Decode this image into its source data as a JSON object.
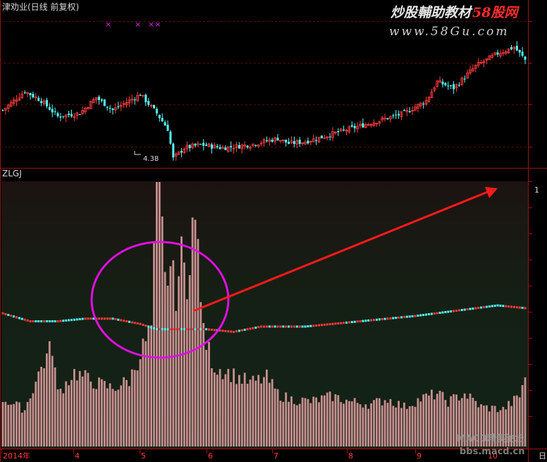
{
  "header": {
    "title": "津劝业(日线 前复权)",
    "watermark_cn": "炒股輔助教材",
    "watermark_site": "58股网",
    "watermark_url": "www.58Gu.com",
    "markers": [
      "×",
      "×",
      "××"
    ]
  },
  "indicator": {
    "label": "ZLGJ",
    "right_tick": "1"
  },
  "footer": {
    "x_labels": [
      "2014年",
      "4",
      "5",
      "6",
      "7",
      "8",
      "9",
      "10"
    ],
    "right_label": "日",
    "forum_name": "MACD精英论坛",
    "forum_url": "bbs.macd.cn"
  },
  "colors": {
    "up": "#ff3c3c",
    "down": "#54ffff",
    "bar": "#c78f8f",
    "axis": "#c01010",
    "annotation": "#e010e0",
    "arrow": "#ff1a1a"
  },
  "chart_data": [
    {
      "type": "candlestick",
      "title": "津劝业(日线 前复权)",
      "x_ticks": [
        "2014年",
        "4",
        "5",
        "6",
        "7",
        "8",
        "9",
        "10"
      ],
      "annotations": [
        {
          "label": "4.38",
          "meaning": "period low"
        }
      ],
      "price_path": [
        [
          0,
          5.15
        ],
        [
          8,
          5.45
        ],
        [
          14,
          5.3
        ],
        [
          20,
          5.05
        ],
        [
          28,
          5.1
        ],
        [
          34,
          5.35
        ],
        [
          40,
          5.15
        ],
        [
          46,
          5.3
        ],
        [
          50,
          5.4
        ],
        [
          56,
          5.1
        ],
        [
          60,
          4.85
        ],
        [
          62,
          4.38
        ],
        [
          66,
          4.55
        ],
        [
          72,
          4.6
        ],
        [
          80,
          4.55
        ],
        [
          90,
          4.6
        ],
        [
          100,
          4.7
        ],
        [
          104,
          4.62
        ],
        [
          110,
          4.65
        ],
        [
          116,
          4.72
        ],
        [
          122,
          4.8
        ],
        [
          130,
          4.9
        ],
        [
          138,
          5.0
        ],
        [
          146,
          5.1
        ],
        [
          154,
          5.3
        ],
        [
          158,
          5.6
        ],
        [
          164,
          5.5
        ],
        [
          172,
          5.85
        ],
        [
          180,
          6.05
        ],
        [
          186,
          6.15
        ],
        [
          190,
          5.95
        ]
      ],
      "low_label_index": 62,
      "n_candles": 191
    },
    {
      "type": "bar",
      "name": "ZLGJ",
      "right_tick": "1",
      "bars_path": [
        [
          0,
          0.18
        ],
        [
          8,
          0.14
        ],
        [
          14,
          0.3
        ],
        [
          18,
          0.38
        ],
        [
          20,
          0.2
        ],
        [
          26,
          0.28
        ],
        [
          34,
          0.24
        ],
        [
          40,
          0.22
        ],
        [
          46,
          0.25
        ],
        [
          50,
          0.35
        ],
        [
          54,
          0.45
        ],
        [
          56,
          0.95
        ],
        [
          57,
          1.0
        ],
        [
          59,
          0.62
        ],
        [
          61,
          0.68
        ],
        [
          63,
          0.58
        ],
        [
          65,
          0.72
        ],
        [
          67,
          0.62
        ],
        [
          69,
          0.85
        ],
        [
          71,
          0.76
        ],
        [
          73,
          0.42
        ],
        [
          77,
          0.3
        ],
        [
          82,
          0.28
        ],
        [
          90,
          0.24
        ],
        [
          96,
          0.26
        ],
        [
          100,
          0.2
        ],
        [
          104,
          0.18
        ],
        [
          112,
          0.17
        ],
        [
          120,
          0.19
        ],
        [
          126,
          0.17
        ],
        [
          134,
          0.16
        ],
        [
          140,
          0.18
        ],
        [
          146,
          0.15
        ],
        [
          152,
          0.18
        ],
        [
          158,
          0.2
        ],
        [
          162,
          0.17
        ],
        [
          168,
          0.2
        ],
        [
          174,
          0.15
        ],
        [
          182,
          0.14
        ],
        [
          188,
          0.19
        ],
        [
          190,
          0.27
        ]
      ],
      "line_path": [
        [
          0,
          0.53
        ],
        [
          10,
          0.5
        ],
        [
          20,
          0.5
        ],
        [
          30,
          0.51
        ],
        [
          40,
          0.51
        ],
        [
          50,
          0.49
        ],
        [
          56,
          0.47
        ],
        [
          64,
          0.47
        ],
        [
          74,
          0.47
        ],
        [
          84,
          0.46
        ],
        [
          94,
          0.48
        ],
        [
          110,
          0.48
        ],
        [
          130,
          0.5
        ],
        [
          150,
          0.52
        ],
        [
          165,
          0.54
        ],
        [
          180,
          0.56
        ],
        [
          190,
          0.55
        ]
      ],
      "annotations": [
        {
          "shape": "ellipse",
          "target": "volume surge, May-June"
        },
        {
          "shape": "arrow",
          "direction": "up-right"
        }
      ]
    }
  ]
}
